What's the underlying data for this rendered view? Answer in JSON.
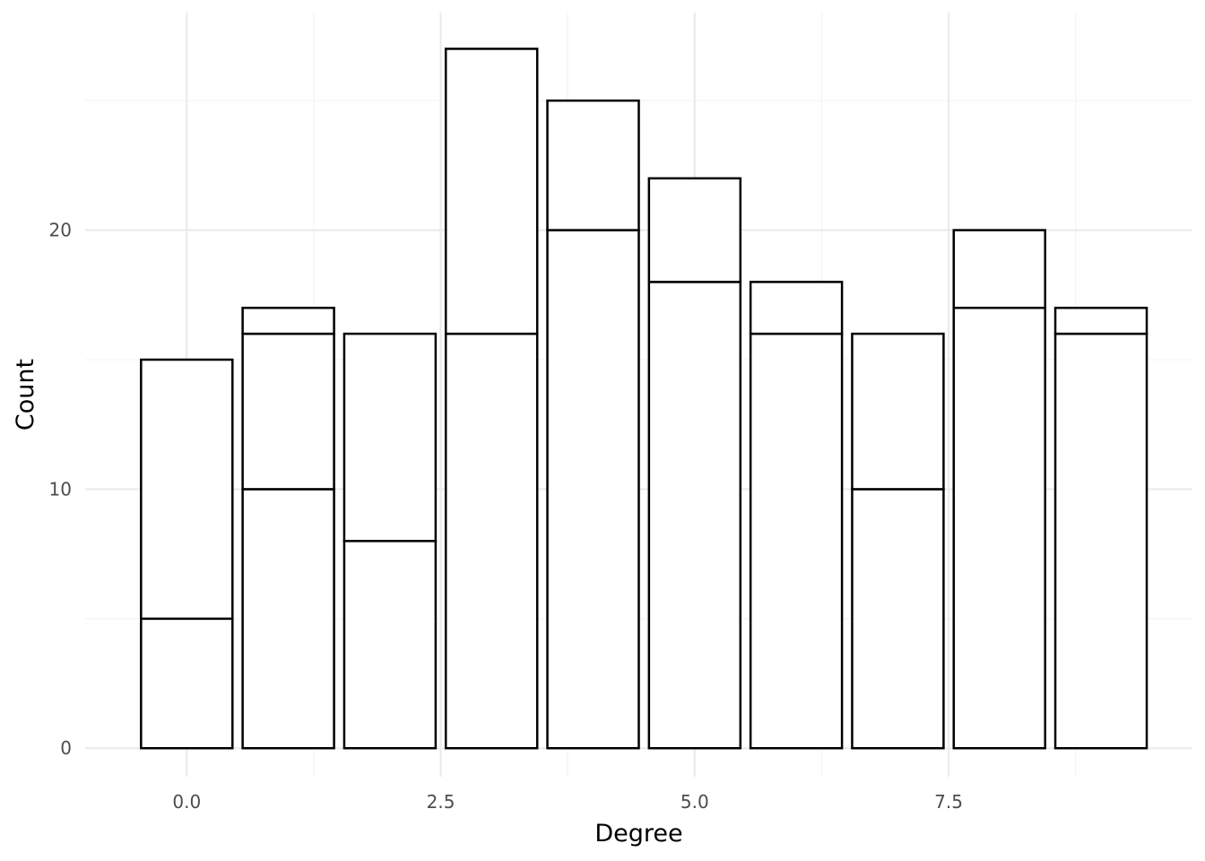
{
  "chart_data": {
    "type": "bar",
    "stacked": true,
    "title": "",
    "xlabel": "Degree",
    "ylabel": "Count",
    "x": [
      0,
      1,
      2,
      3,
      4,
      5,
      6,
      7,
      8,
      9
    ],
    "series": [
      {
        "values": [
          5,
          10,
          8,
          16,
          20,
          18,
          16,
          10,
          17,
          16
        ]
      },
      {
        "values": [
          10,
          6,
          8,
          0,
          0,
          0,
          0,
          6,
          0,
          0
        ]
      },
      {
        "values": [
          0,
          1,
          0,
          11,
          5,
          4,
          2,
          0,
          3,
          1
        ]
      }
    ],
    "xlim": [
      -1.0,
      9.9
    ],
    "ylim": [
      -1.1,
      28.4
    ],
    "xticks": [
      0.0,
      2.5,
      5.0,
      7.5
    ],
    "xtick_labels": [
      "0.0",
      "2.5",
      "5.0",
      "7.5"
    ],
    "xminor": [
      1.25,
      3.75,
      6.25,
      8.75
    ],
    "yticks": [
      0,
      10,
      20
    ],
    "ytick_labels": [
      "0",
      "10",
      "20"
    ],
    "yminor": [
      5,
      15,
      25
    ],
    "grid": true,
    "fill_color": "#ffffff",
    "edge_color": "#000000"
  }
}
